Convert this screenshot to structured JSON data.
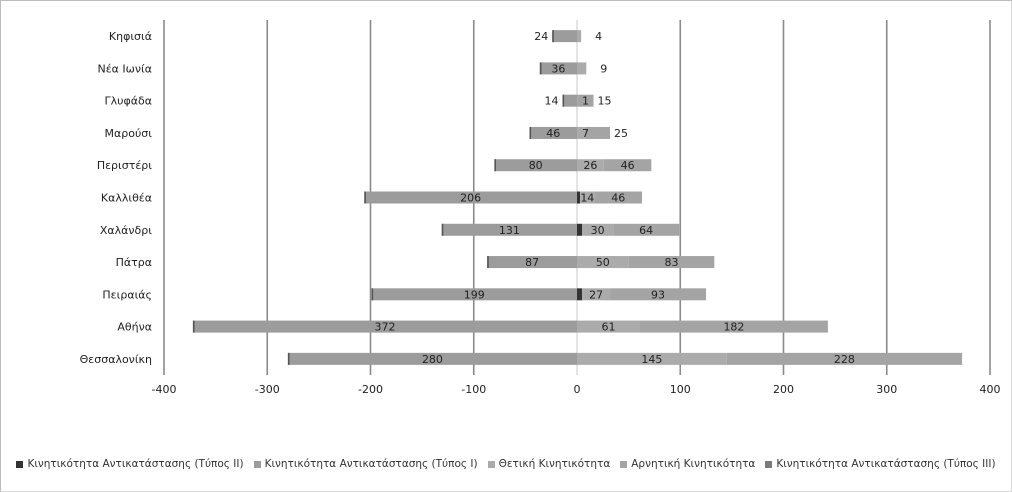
{
  "chart_data": {
    "type": "bar",
    "orientation": "horizontal-stacked-diverging",
    "categories": [
      "Κηφισιά",
      "Νέα Ιωνία",
      "Γλυφάδα",
      "Μαρούσι",
      "Περιστέρι",
      "Καλλιθέα",
      "Χαλάνδρι",
      "Πάτρα",
      "Πειραιάς",
      "Αθήνα",
      "Θεσσαλονίκη"
    ],
    "series": [
      {
        "name": "Κινητικότητα Αντικατάστασης (Τύπος ΙΙ)",
        "color": "#333333",
        "values": [
          0,
          0,
          0,
          0,
          0,
          3,
          5,
          0,
          5,
          0,
          0
        ],
        "value_labels": [
          null,
          null,
          null,
          null,
          null,
          null,
          null,
          null,
          null,
          null,
          null
        ]
      },
      {
        "name": "Κινητικότητα Αντικατάστασης (Τύπος Ι)",
        "color": "#9c9c9c",
        "values": [
          -24,
          -36,
          -14,
          -46,
          -80,
          -206,
          -131,
          -87,
          -199,
          -372,
          -280
        ],
        "value_labels": [
          "24",
          "36",
          "14",
          "46",
          "80",
          "206",
          "131",
          "87",
          "199",
          "372",
          "280"
        ]
      },
      {
        "name": "Θετική Κινητικότητα",
        "color": "#ababab",
        "values": [
          4,
          9,
          1,
          7,
          26,
          14,
          30,
          50,
          27,
          61,
          145
        ],
        "value_labels": [
          "4",
          "9",
          "1",
          "7",
          "26",
          "14",
          "30",
          "50",
          "27",
          "61",
          "145"
        ]
      },
      {
        "name": "Αρνητική Κινητικότητα",
        "color": "#a4a4a4",
        "values": [
          0,
          0,
          15,
          25,
          46,
          46,
          64,
          83,
          93,
          182,
          228
        ],
        "value_labels": [
          null,
          null,
          "15",
          "25",
          "46",
          "46",
          "64",
          "83",
          "93",
          "182",
          "228"
        ]
      },
      {
        "name": "Κινητικότητα Αντικατάστασης (Τύπος ΙΙΙ)",
        "color": "#7a7a7a",
        "values": [
          0,
          0,
          0,
          0,
          0,
          0,
          0,
          0,
          0,
          0,
          0
        ],
        "value_labels": [
          null,
          null,
          null,
          null,
          null,
          null,
          null,
          null,
          null,
          null,
          null
        ]
      }
    ],
    "xlim": [
      -400,
      400
    ],
    "xticks": [
      "-400",
      "-300",
      "-200",
      "-100",
      "0",
      "100",
      "200",
      "300",
      "400"
    ],
    "grid": "vertical",
    "legend_position": "bottom"
  }
}
